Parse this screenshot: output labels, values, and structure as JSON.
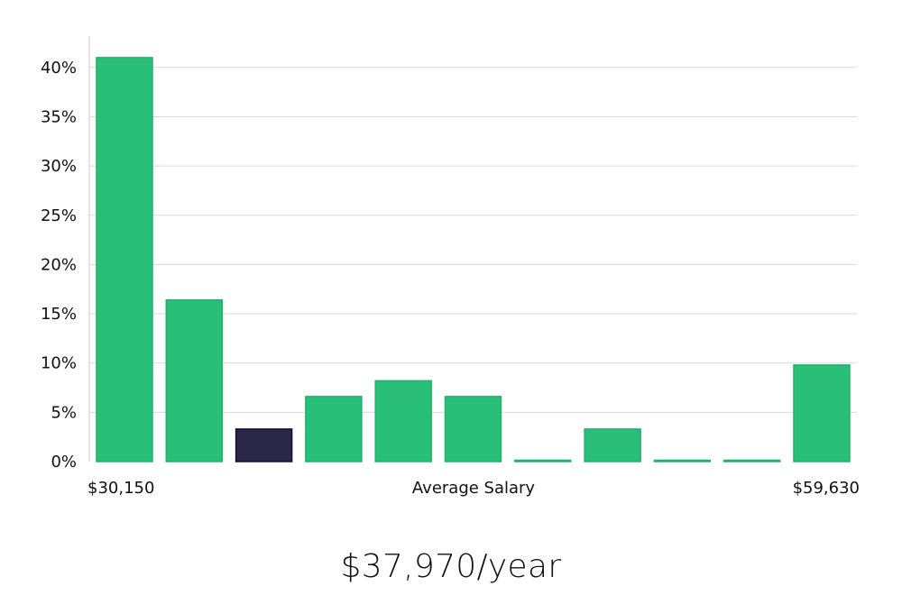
{
  "chart_data": {
    "type": "bar",
    "title": "",
    "xlabel": "Average Salary",
    "ylabel": "",
    "x_range_labels": {
      "min": "$30,150",
      "max": "$59,630"
    },
    "ylim": [
      0,
      43
    ],
    "yticks": [
      0,
      5,
      10,
      15,
      20,
      25,
      30,
      35,
      40
    ],
    "ytick_suffix": "%",
    "grid": true,
    "values": [
      41,
      16.4,
      3.3,
      6.6,
      8.2,
      6.6,
      0,
      3.3,
      0,
      0,
      9.8
    ],
    "highlight_index": 2,
    "colors": {
      "bar": "#29bf78",
      "bar_stroke": "#21b26d",
      "highlight": "#2b2748",
      "highlight_stroke": "#14122a",
      "grid": "#d9d9d9",
      "axis": "#cccccc",
      "text": "#111111"
    }
  },
  "summary": {
    "salary": "$37,970/year"
  }
}
